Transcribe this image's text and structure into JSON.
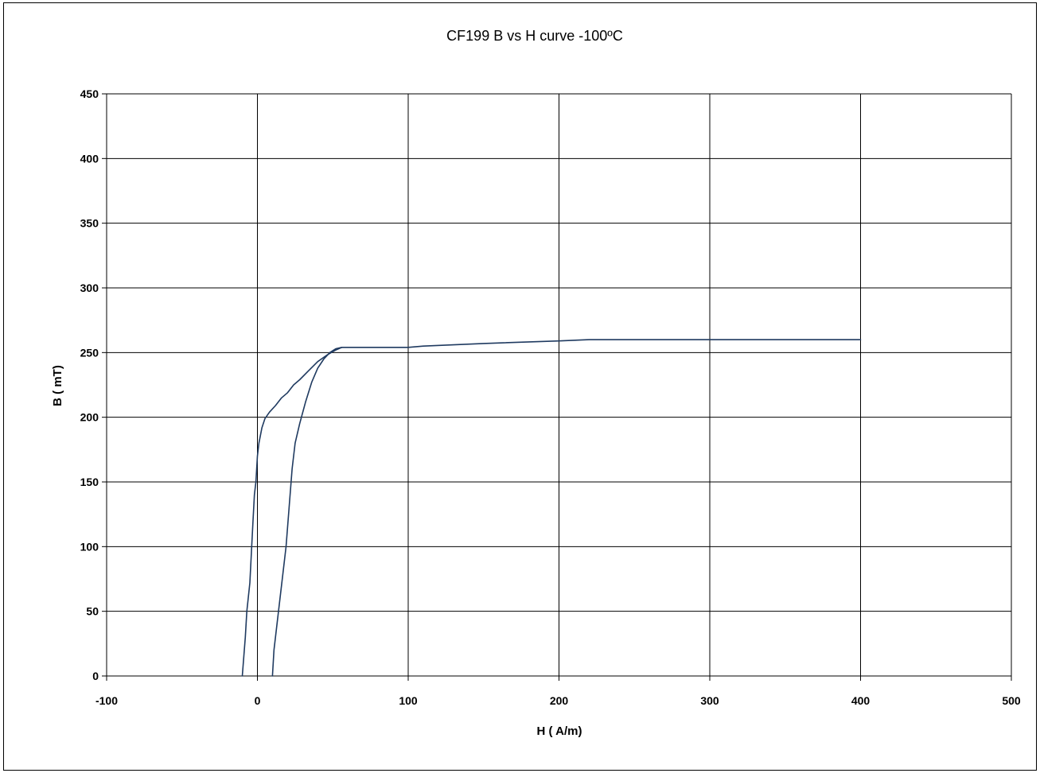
{
  "chart_data": {
    "type": "line",
    "title": "CF199  B vs H curve -100ºC",
    "xlabel": "H ( A/m)",
    "ylabel": "B ( mT)",
    "xlim": [
      -100,
      500
    ],
    "ylim": [
      0,
      450
    ],
    "x_ticks": [
      -100,
      0,
      100,
      200,
      300,
      400,
      500
    ],
    "y_ticks": [
      0,
      50,
      100,
      150,
      200,
      250,
      300,
      350,
      400,
      450
    ],
    "grid": true,
    "legend": "none",
    "line_color": "#1f3a60",
    "series": [
      {
        "points": [
          [
            400,
            260
          ],
          [
            300,
            260
          ],
          [
            270,
            260
          ],
          [
            220,
            260
          ],
          [
            200,
            259
          ],
          [
            150,
            257
          ],
          [
            110,
            255
          ],
          [
            100,
            254
          ],
          [
            90,
            254
          ],
          [
            80,
            254
          ],
          [
            70,
            254
          ],
          [
            60,
            254
          ],
          [
            56,
            254
          ],
          [
            52,
            252
          ],
          [
            46,
            248
          ],
          [
            40,
            243
          ],
          [
            34,
            236
          ],
          [
            28,
            229
          ],
          [
            24,
            225
          ],
          [
            20,
            219
          ],
          [
            16,
            215
          ],
          [
            12,
            209
          ],
          [
            8,
            204
          ],
          [
            5,
            199
          ],
          [
            3,
            192
          ],
          [
            1,
            180
          ],
          [
            0,
            170
          ],
          [
            -1,
            150
          ],
          [
            -2,
            140
          ],
          [
            -3,
            118
          ],
          [
            -4,
            95
          ],
          [
            -5,
            72
          ],
          [
            -7,
            50
          ],
          [
            -8,
            30
          ],
          [
            -9,
            15
          ],
          [
            -10,
            0
          ]
        ]
      },
      {
        "points": [
          [
            10,
            0
          ],
          [
            11,
            20
          ],
          [
            13,
            40
          ],
          [
            15,
            60
          ],
          [
            17,
            80
          ],
          [
            19,
            100
          ],
          [
            21,
            130
          ],
          [
            23,
            160
          ],
          [
            25,
            180
          ],
          [
            28,
            195
          ],
          [
            32,
            212
          ],
          [
            36,
            227
          ],
          [
            40,
            238
          ],
          [
            44,
            245
          ],
          [
            48,
            250
          ],
          [
            52,
            253
          ],
          [
            56,
            254
          ]
        ]
      }
    ]
  }
}
